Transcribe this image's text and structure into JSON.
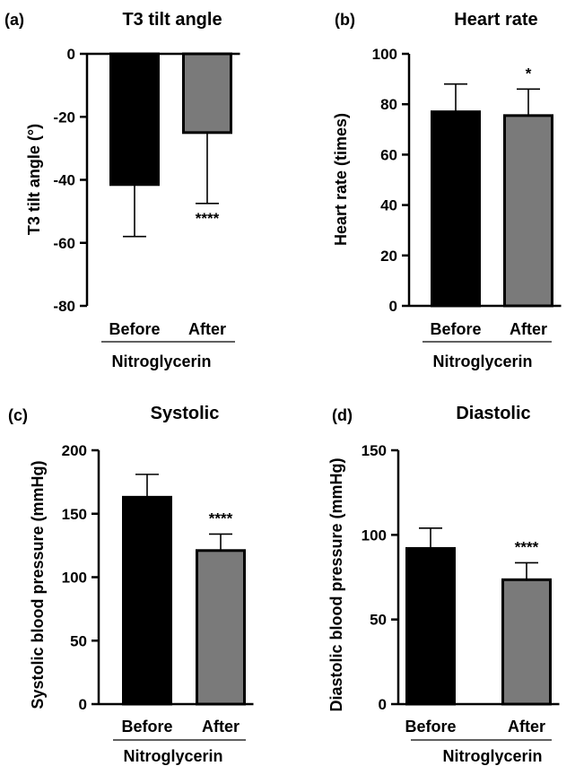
{
  "colors": {
    "before_bar": "#000000",
    "after_bar": "#7a7a7a",
    "axis": "#000000",
    "background": "#ffffff"
  },
  "chart_data": [
    {
      "panel": "(a)",
      "type": "bar",
      "title": "T3 tilt angle",
      "ylabel": "T3 tilt angle (°)",
      "xlabel": "Nitroglycerin",
      "categories": [
        "Before",
        "After"
      ],
      "values": [
        -41.5,
        -25
      ],
      "errors": [
        16.5,
        22.5
      ],
      "significance": [
        "",
        "****"
      ],
      "ylim": [
        -80,
        0
      ],
      "yticks": [
        0,
        -20,
        -40,
        -60,
        -80
      ],
      "ytick_labels": [
        "0",
        "-20",
        "-40",
        "-60",
        "-80"
      ],
      "bars_hang_from_top": true,
      "bar_colors": [
        "#000000",
        "#7a7a7a"
      ]
    },
    {
      "panel": "(b)",
      "type": "bar",
      "title": "Heart rate",
      "ylabel": "Heart rate (times)",
      "xlabel": "Nitroglycerin",
      "categories": [
        "Before",
        "After"
      ],
      "values": [
        77,
        75.5
      ],
      "errors": [
        11,
        10.5
      ],
      "significance": [
        "",
        "*"
      ],
      "ylim": [
        0,
        100
      ],
      "yticks": [
        0,
        20,
        40,
        60,
        80,
        100
      ],
      "ytick_labels": [
        "0",
        "20",
        "40",
        "60",
        "80",
        "100"
      ],
      "bars_hang_from_top": false,
      "bar_colors": [
        "#000000",
        "#7a7a7a"
      ]
    },
    {
      "panel": "(c)",
      "type": "bar",
      "title": "Systolic",
      "ylabel": "Systolic blood pressure (mmHg)",
      "xlabel": "Nitroglycerin",
      "categories": [
        "Before",
        "After"
      ],
      "values": [
        163,
        121
      ],
      "errors": [
        18,
        13
      ],
      "significance": [
        "",
        "****"
      ],
      "ylim": [
        0,
        200
      ],
      "yticks": [
        0,
        50,
        100,
        150,
        200
      ],
      "ytick_labels": [
        "0",
        "50",
        "100",
        "150",
        "200"
      ],
      "bars_hang_from_top": false,
      "bar_colors": [
        "#000000",
        "#7a7a7a"
      ]
    },
    {
      "panel": "(d)",
      "type": "bar",
      "title": "Diastolic",
      "ylabel": "Diastolic blood pressure (mmHg)",
      "xlabel": "Nitroglycerin",
      "categories": [
        "Before",
        "After"
      ],
      "values": [
        92,
        73.5
      ],
      "errors": [
        12,
        10
      ],
      "significance": [
        "",
        "****"
      ],
      "ylim": [
        0,
        150
      ],
      "yticks": [
        0,
        50,
        100,
        150
      ],
      "ytick_labels": [
        "0",
        "50",
        "100",
        "150"
      ],
      "bars_hang_from_top": false,
      "bar_colors": [
        "#000000",
        "#7a7a7a"
      ]
    }
  ]
}
